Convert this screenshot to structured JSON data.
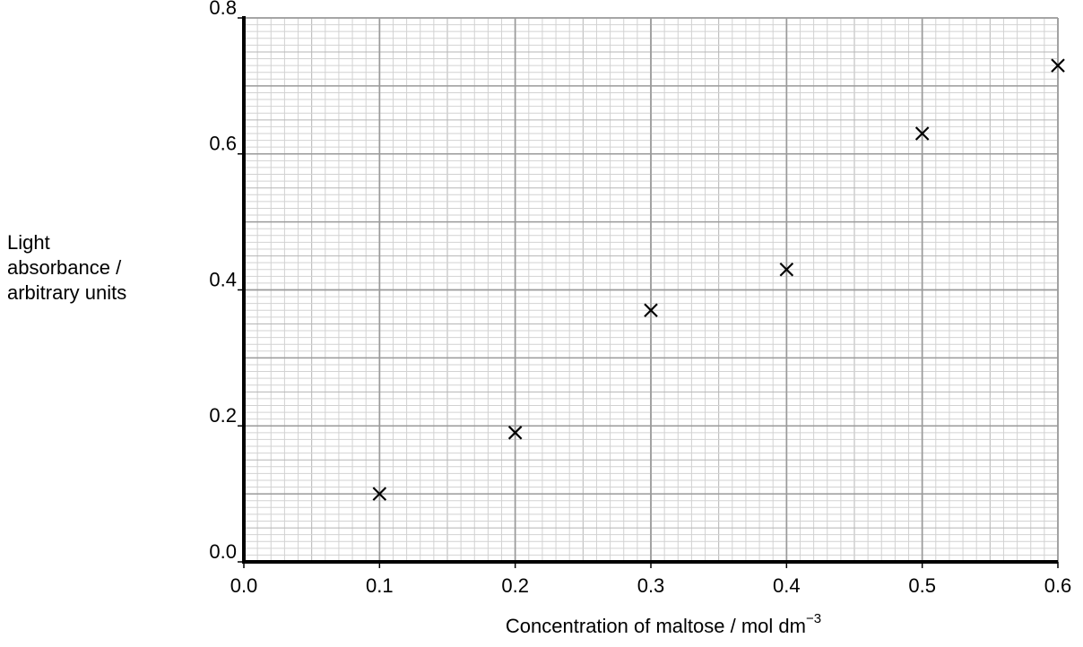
{
  "chart_data": {
    "type": "scatter",
    "xlabel": "Concentration of maltose / mol dm",
    "xlabel_superscript": "−3",
    "ylabel": [
      "Light",
      "absorbance /",
      "arbitrary units"
    ],
    "x": [
      0.1,
      0.2,
      0.3,
      0.4,
      0.5,
      0.6
    ],
    "values": [
      0.1,
      0.19,
      0.37,
      0.43,
      0.63,
      0.73
    ],
    "color": "#000000",
    "xlim": [
      0,
      0.6
    ],
    "ylim": [
      0,
      0.8
    ],
    "xticks": [
      {
        "value": 0,
        "label": "0.0"
      },
      0.1,
      0.2,
      0.3,
      0.4,
      0.5,
      0.6
    ],
    "yticks": [
      {
        "value": 0,
        "label": "0.0"
      },
      0.2,
      0.4,
      0.6,
      0.8
    ],
    "grid": true
  }
}
